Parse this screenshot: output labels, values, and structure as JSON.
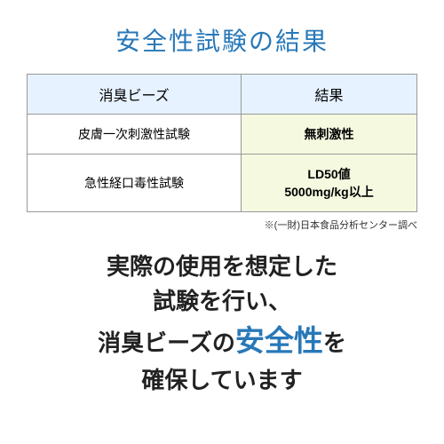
{
  "title": "安全性試験の結果",
  "table": {
    "headers": [
      "消臭ビーズ",
      "結果"
    ],
    "rows": [
      {
        "label": "皮膚一次刺激性試験",
        "result": "無刺激性"
      },
      {
        "label": "急性経口毒性試験",
        "result_line1": "LD50値",
        "result_line2": "5000mg/kg以上"
      }
    ],
    "header_bg": "#e6f2ff",
    "result_bg": "#f5f9e0",
    "border_color": "#999999"
  },
  "footnote": "※(一財)日本食品分析センター調べ",
  "summary": {
    "line1": "実際の使用を想定した",
    "line2": "試験を行い、",
    "line3_prefix": "消臭ビーズの",
    "line3_highlight": "安全性",
    "line3_suffix": "を",
    "line4": "確保しています",
    "text_color": "#222222",
    "highlight_color": "#2878b8"
  },
  "colors": {
    "title_color": "#2878b8",
    "background": "#ffffff"
  }
}
